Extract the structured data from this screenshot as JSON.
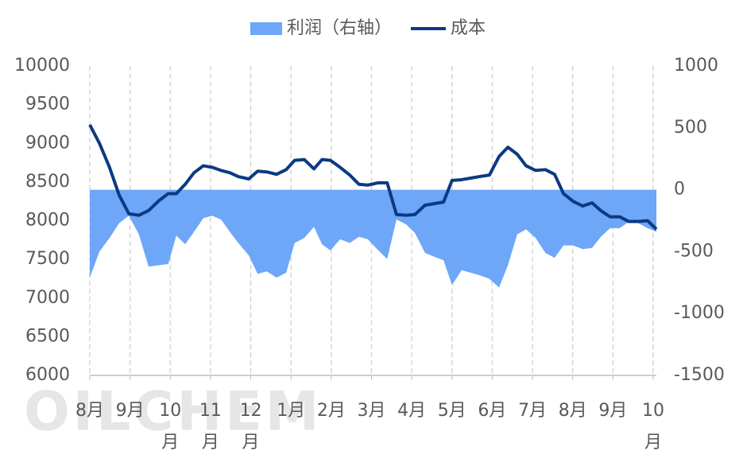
{
  "chart_data": {
    "type": "combo",
    "watermark": "OILCHEM",
    "x": [
      0,
      0.24,
      0.49,
      0.73,
      0.97,
      1.22,
      1.46,
      1.72,
      1.95,
      2.15,
      2.37,
      2.59,
      2.82,
      3.04,
      3.26,
      3.48,
      3.69,
      3.95,
      4.17,
      4.4,
      4.64,
      4.88,
      5.09,
      5.33,
      5.57,
      5.77,
      5.98,
      6.22,
      6.46,
      6.69,
      6.91,
      7.17,
      7.39,
      7.62,
      7.86,
      8.08,
      8.33,
      8.55,
      8.79,
      9.0,
      9.24,
      9.46,
      9.68,
      9.93,
      10.17,
      10.39,
      10.62,
      10.84,
      11.08,
      11.32,
      11.55,
      11.77,
      12.01,
      12.25,
      12.48,
      12.7,
      12.93,
      13.17,
      13.39,
      13.63,
      13.86,
      14.08
    ],
    "series": [
      {
        "name": "利润（右轴）",
        "type": "area",
        "axis": "y2",
        "color": "#6ea6f8",
        "values": [
          -710,
          -500,
          -390,
          -270,
          -210,
          -360,
          -620,
          -610,
          -600,
          -370,
          -440,
          -340,
          -230,
          -210,
          -240,
          -340,
          -430,
          -530,
          -680,
          -660,
          -710,
          -670,
          -430,
          -390,
          -300,
          -440,
          -490,
          -400,
          -430,
          -380,
          -400,
          -490,
          -560,
          -240,
          -280,
          -350,
          -510,
          -540,
          -570,
          -770,
          -650,
          -670,
          -690,
          -720,
          -790,
          -610,
          -360,
          -320,
          -390,
          -510,
          -550,
          -450,
          -450,
          -480,
          -470,
          -380,
          -310,
          -310,
          -260,
          -270,
          -310,
          -340
        ]
      },
      {
        "name": "成本",
        "type": "line",
        "axis": "y",
        "color": "#0b3a82",
        "values": [
          9240,
          9000,
          8690,
          8330,
          8090,
          8070,
          8130,
          8260,
          8350,
          8350,
          8470,
          8620,
          8710,
          8690,
          8650,
          8620,
          8570,
          8540,
          8640,
          8630,
          8600,
          8660,
          8780,
          8790,
          8670,
          8790,
          8780,
          8690,
          8590,
          8470,
          8460,
          8490,
          8490,
          8080,
          8070,
          8080,
          8200,
          8220,
          8240,
          8520,
          8530,
          8550,
          8570,
          8590,
          8830,
          8950,
          8860,
          8710,
          8650,
          8660,
          8600,
          8350,
          8250,
          8190,
          8230,
          8130,
          8050,
          8050,
          7990,
          7990,
          8000,
          7890
        ]
      }
    ],
    "xlim": [
      0,
      14.08
    ],
    "xticks": [
      {
        "value": 0,
        "label": "8月"
      },
      {
        "value": 1,
        "label": "9月"
      },
      {
        "value": 2,
        "label": "10月"
      },
      {
        "value": 3,
        "label": "11月"
      },
      {
        "value": 4,
        "label": "12月"
      },
      {
        "value": 5,
        "label": "1月"
      },
      {
        "value": 6,
        "label": "2月"
      },
      {
        "value": 7,
        "label": "3月"
      },
      {
        "value": 8,
        "label": "4月"
      },
      {
        "value": 9,
        "label": "5月"
      },
      {
        "value": 10,
        "label": "6月"
      },
      {
        "value": 11,
        "label": "7月"
      },
      {
        "value": 12,
        "label": "8月"
      },
      {
        "value": 13,
        "label": "9月"
      },
      {
        "value": 14,
        "label": "10月"
      }
    ],
    "ylim": [
      6000,
      10000
    ],
    "yticks": [
      6000,
      6500,
      7000,
      7500,
      8000,
      8500,
      9000,
      9500,
      10000
    ],
    "y2lim": [
      -1500,
      1000
    ],
    "y2ticks": [
      -1500,
      -1000,
      -500,
      0,
      500,
      1000
    ],
    "grid": true
  }
}
